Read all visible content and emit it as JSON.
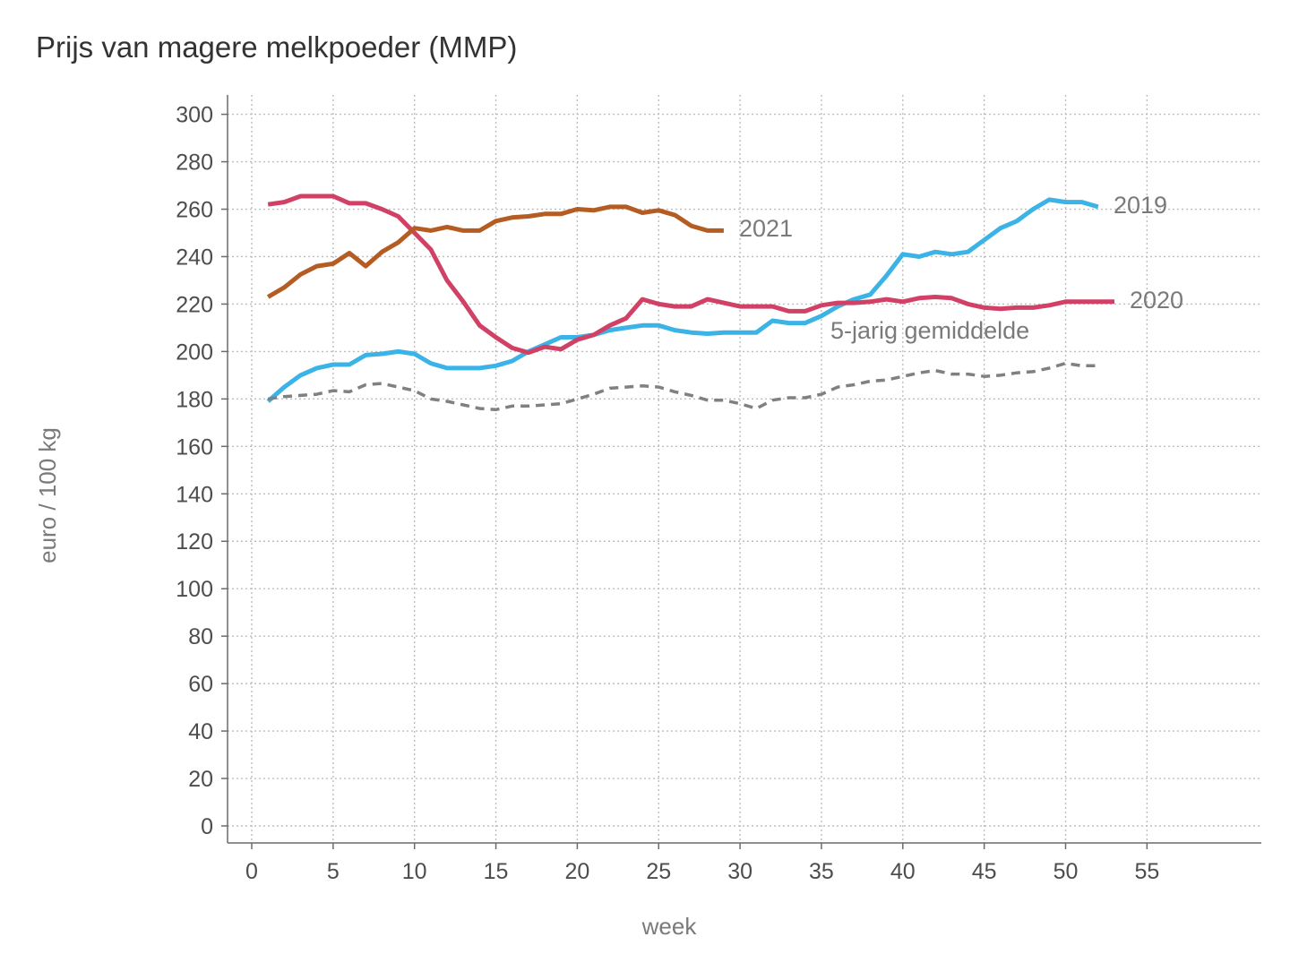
{
  "chart_data": {
    "type": "line",
    "title": "Prijs van magere melkpoeder (MMP)",
    "xlabel": "week",
    "ylabel": "euro / 100 kg",
    "xlim": [
      0,
      62
    ],
    "ylim": [
      0,
      300
    ],
    "x_ticks": [
      0,
      5,
      10,
      15,
      20,
      25,
      30,
      35,
      40,
      45,
      50,
      55
    ],
    "y_ticks": [
      0,
      20,
      40,
      60,
      80,
      100,
      120,
      140,
      160,
      180,
      200,
      220,
      240,
      260,
      280,
      300
    ],
    "grid": true,
    "series": [
      {
        "name": "2019",
        "color": "#3bb3e6",
        "dash": "solid",
        "x": [
          1,
          2,
          3,
          4,
          5,
          6,
          7,
          8,
          9,
          10,
          11,
          12,
          13,
          14,
          15,
          16,
          17,
          18,
          19,
          20,
          21,
          22,
          23,
          24,
          25,
          26,
          27,
          28,
          29,
          30,
          31,
          32,
          33,
          34,
          35,
          36,
          37,
          38,
          39,
          40,
          41,
          42,
          43,
          44,
          45,
          46,
          47,
          48,
          49,
          50,
          51,
          52
        ],
        "y": [
          179,
          185,
          190,
          193,
          194.5,
          194.5,
          198.5,
          199,
          200,
          199,
          195,
          193,
          193,
          193,
          194,
          196,
          200,
          203,
          206,
          206,
          207,
          209,
          210,
          211,
          211,
          209,
          208,
          207.5,
          208,
          208,
          208,
          213,
          212,
          212,
          215,
          219,
          222,
          224,
          232,
          241,
          240,
          242,
          241,
          242,
          247,
          252,
          255,
          260,
          264,
          263,
          263,
          261
        ]
      },
      {
        "name": "2020",
        "color": "#d14166",
        "dash": "solid",
        "x": [
          1,
          2,
          3,
          4,
          5,
          6,
          7,
          8,
          9,
          10,
          11,
          12,
          13,
          14,
          15,
          16,
          17,
          18,
          19,
          20,
          21,
          22,
          23,
          24,
          25,
          26,
          27,
          28,
          29,
          30,
          31,
          32,
          33,
          34,
          35,
          36,
          37,
          38,
          39,
          40,
          41,
          42,
          43,
          44,
          45,
          46,
          47,
          48,
          49,
          50,
          51,
          52,
          53
        ],
        "y": [
          262,
          263,
          265.5,
          265.5,
          265.5,
          262.5,
          262.5,
          260,
          257,
          250,
          243,
          230,
          221,
          211,
          206,
          201.5,
          199.5,
          202,
          201,
          205,
          207,
          211,
          214,
          222,
          220,
          219,
          219,
          222,
          220.5,
          219,
          219,
          219,
          217,
          217,
          219.5,
          220.5,
          220.5,
          221,
          222,
          221,
          222.5,
          223,
          222.5,
          220,
          218.5,
          218,
          218.5,
          218.5,
          219.5,
          221,
          221,
          221,
          221
        ]
      },
      {
        "name": "2021",
        "color": "#b55c23",
        "dash": "solid",
        "x": [
          1,
          2,
          3,
          4,
          5,
          6,
          7,
          8,
          9,
          10,
          11,
          12,
          13,
          14,
          15,
          16,
          17,
          18,
          19,
          20,
          21,
          22,
          23,
          24,
          25,
          26,
          27,
          28,
          29
        ],
        "y": [
          223,
          227,
          232.5,
          236,
          237,
          241.5,
          236,
          242,
          246,
          252,
          251,
          252.5,
          251,
          251,
          255,
          256.5,
          257,
          258,
          258,
          260,
          259.5,
          261,
          261,
          258.5,
          259.5,
          257.5,
          253,
          251,
          251
        ]
      },
      {
        "name": "5-jarig gemiddelde",
        "color": "#808080",
        "dash": "dashed",
        "x": [
          1,
          2,
          3,
          4,
          5,
          6,
          7,
          8,
          9,
          10,
          11,
          12,
          13,
          14,
          15,
          16,
          17,
          18,
          19,
          20,
          21,
          22,
          23,
          24,
          25,
          26,
          27,
          28,
          29,
          30,
          31,
          32,
          33,
          34,
          35,
          36,
          37,
          38,
          39,
          40,
          41,
          42,
          43,
          44,
          45,
          46,
          47,
          48,
          49,
          50,
          51,
          52
        ],
        "y": [
          180,
          181,
          181.5,
          182,
          183.5,
          183,
          186,
          186.5,
          185,
          183.5,
          180,
          179,
          177.5,
          176,
          175.5,
          177,
          177,
          177.5,
          178,
          180,
          182,
          184.5,
          185,
          185.5,
          185,
          183,
          181.5,
          179.5,
          179.5,
          178,
          176,
          179.5,
          180.5,
          180.5,
          182,
          185,
          186,
          187.5,
          188,
          189.5,
          191,
          192,
          190.5,
          190.5,
          189.5,
          190,
          191,
          191.5,
          193,
          195,
          194,
          194
        ]
      }
    ],
    "annotations": [
      {
        "text": "2019",
        "series": "2019"
      },
      {
        "text": "2020",
        "series": "2020"
      },
      {
        "text": "2021",
        "series": "2021"
      },
      {
        "text": "5-jarig gemiddelde",
        "series": "5-jarig gemiddelde"
      }
    ]
  }
}
